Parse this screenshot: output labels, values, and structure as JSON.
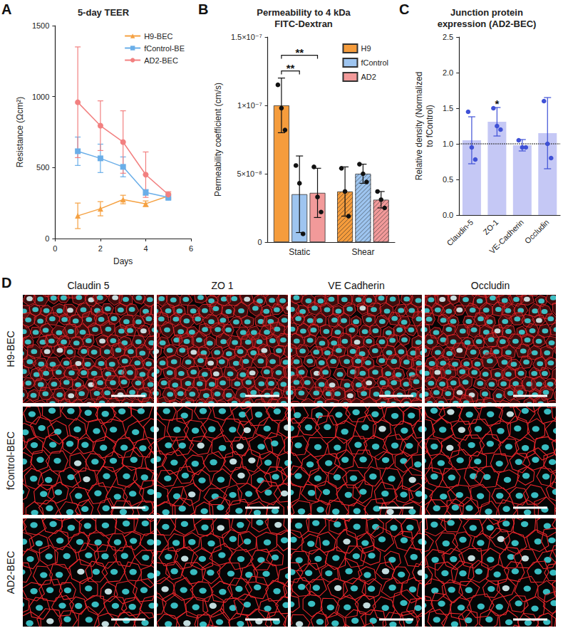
{
  "chart_data": [
    {
      "panel": "A",
      "type": "line",
      "title": "5-day TEER",
      "x_label": "Days",
      "y_label": "Resistance (Ωcm²)",
      "x": [
        1,
        2,
        3,
        4,
        5
      ],
      "xlim": [
        0,
        6
      ],
      "xticks": [
        0,
        2,
        4,
        6
      ],
      "ylim": [
        0,
        1500
      ],
      "yticks": [
        0,
        500,
        1000,
        1500
      ],
      "grid": false,
      "legend": "upper right",
      "series": [
        {
          "name": "H9-BEC",
          "color": "#f5a142",
          "marker": "triangle",
          "values": [
            160,
            210,
            275,
            245,
            300
          ],
          "errors": [
            90,
            50,
            30,
            20,
            20
          ]
        },
        {
          "name": "fControl-BE",
          "color": "#6aaee8",
          "marker": "square",
          "values": [
            615,
            565,
            505,
            325,
            290
          ],
          "errors": [
            100,
            100,
            70,
            20,
            20
          ]
        },
        {
          "name": "AD2-BEC",
          "color": "#f28080",
          "marker": "circle",
          "values": [
            960,
            795,
            680,
            450,
            310
          ],
          "errors": [
            390,
            175,
            220,
            160,
            20
          ]
        }
      ]
    },
    {
      "panel": "B",
      "type": "bar",
      "title": "Permeability to 4 kDa FITC-Dextran",
      "y_label": "Permeability coefficient (cm/s)",
      "categories": [
        "Static",
        "Shear"
      ],
      "ylim": [
        0,
        1.5e-07
      ],
      "yticks": [
        0,
        {
          "value": 5e-08,
          "label": "5×10⁻⁸"
        },
        {
          "value": 1e-07,
          "label": "1×10⁻⁷"
        },
        {
          "value": 1.5e-07,
          "label": "1.5×10⁻⁷"
        }
      ],
      "grid": false,
      "legend": "upper right",
      "series": [
        {
          "name": "H9",
          "color": "#f59c3c",
          "values": [
            1e-07,
            3.7e-08
          ],
          "errors": [
            2e-08,
            1.8e-08
          ],
          "points": [
            [
              1.15e-07,
              9.8e-08,
              8.2e-08
            ],
            [
              5.4e-08,
              3.7e-08,
              1.9e-08
            ]
          ]
        },
        {
          "name": "fControl",
          "color": "#9ec5f0",
          "values": [
            3.5e-08,
            5e-08
          ],
          "errors": [
            2.8e-08,
            7e-09
          ],
          "points": [
            [
              5.6e-08,
              4.3e-08,
              6e-09
            ],
            [
              5.7e-08,
              5e-08,
              4.4e-08
            ]
          ]
        },
        {
          "name": "AD2",
          "color": "#f29a9a",
          "values": [
            3.6e-08,
            3.1e-08
          ],
          "errors": [
            1.8e-08,
            6e-09
          ],
          "points": [
            [
              5.5e-08,
              3.3e-08,
              2.2e-08
            ],
            [
              3.7e-08,
              3.1e-08,
              2.5e-08
            ]
          ]
        }
      ],
      "annotations": [
        {
          "text": "**",
          "category": "Static",
          "between": [
            "H9",
            "fControl"
          ]
        },
        {
          "text": "**",
          "category": "Static",
          "between": [
            "H9",
            "AD2"
          ]
        }
      ]
    },
    {
      "panel": "C",
      "type": "bar",
      "title": "Junction protein expression (AD2-BEC)",
      "y_label": "Relative density (Normalized to fControl)",
      "categories": [
        "Claudin-5",
        "ZO-1",
        "VE-Cadherin",
        "Occludin"
      ],
      "color": "#c5c8f5",
      "values": [
        1.05,
        1.31,
        0.98,
        1.15
      ],
      "errors": [
        0.33,
        0.2,
        0.08,
        0.5
      ],
      "points": [
        [
          1.45,
          0.95,
          0.78
        ],
        [
          1.5,
          1.25,
          1.2
        ],
        [
          1.05,
          0.95,
          0.95
        ],
        [
          1.6,
          1.0,
          0.8
        ]
      ],
      "ylim": [
        0,
        2.5
      ],
      "yticks": [
        {
          "value": 0,
          "label": "0.0"
        },
        0.5,
        {
          "value": 1,
          "label": "1.0"
        },
        1.5,
        {
          "value": 2,
          "label": "2.0"
        },
        2.5
      ],
      "grid": false,
      "reference_line": 1,
      "annotations": [
        {
          "text": "*",
          "category": "ZO-1"
        }
      ]
    }
  ],
  "micrographs": {
    "panel": "D",
    "columns": [
      "Claudin 5",
      "ZO 1",
      "VE Cadherin",
      "Occludin"
    ],
    "rows": [
      "H9-BEC",
      "fControl-BEC",
      "AD2-BEC"
    ]
  }
}
